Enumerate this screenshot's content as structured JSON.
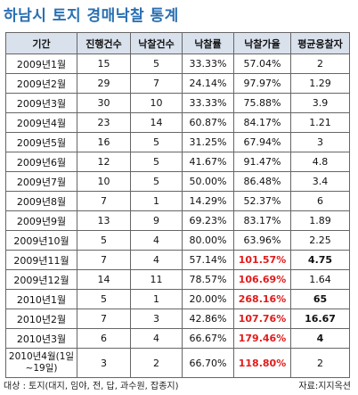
{
  "title": "하남시 토지 경매낙찰 통계",
  "table": {
    "headers": [
      "기간",
      "진행건수",
      "낙찰건수",
      "낙찰률",
      "낙찰가율",
      "평균응찰자"
    ],
    "rows": [
      {
        "period": "2009년1월",
        "progress": "15",
        "winning": "5",
        "rate": "33.33%",
        "price_rate": "57.04%",
        "avg_bidders": "2",
        "hi_price": false,
        "bold_bidders": false
      },
      {
        "period": "2009년2월",
        "progress": "29",
        "winning": "7",
        "rate": "24.14%",
        "price_rate": "97.97%",
        "avg_bidders": "1.29",
        "hi_price": false,
        "bold_bidders": false
      },
      {
        "period": "2009년3월",
        "progress": "30",
        "winning": "10",
        "rate": "33.33%",
        "price_rate": "75.88%",
        "avg_bidders": "3.9",
        "hi_price": false,
        "bold_bidders": false
      },
      {
        "period": "2009년4월",
        "progress": "23",
        "winning": "14",
        "rate": "60.87%",
        "price_rate": "84.17%",
        "avg_bidders": "1.21",
        "hi_price": false,
        "bold_bidders": false
      },
      {
        "period": "2009년5월",
        "progress": "16",
        "winning": "5",
        "rate": "31.25%",
        "price_rate": "67.94%",
        "avg_bidders": "3",
        "hi_price": false,
        "bold_bidders": false
      },
      {
        "period": "2009년6월",
        "progress": "12",
        "winning": "5",
        "rate": "41.67%",
        "price_rate": "91.47%",
        "avg_bidders": "4.8",
        "hi_price": false,
        "bold_bidders": false
      },
      {
        "period": "2009년7월",
        "progress": "10",
        "winning": "5",
        "rate": "50.00%",
        "price_rate": "86.48%",
        "avg_bidders": "3.4",
        "hi_price": false,
        "bold_bidders": false
      },
      {
        "period": "2009년8월",
        "progress": "7",
        "winning": "1",
        "rate": "14.29%",
        "price_rate": "52.37%",
        "avg_bidders": "6",
        "hi_price": false,
        "bold_bidders": false
      },
      {
        "period": "2009년9월",
        "progress": "13",
        "winning": "9",
        "rate": "69.23%",
        "price_rate": "83.17%",
        "avg_bidders": "1.89",
        "hi_price": false,
        "bold_bidders": false
      },
      {
        "period": "2009년10월",
        "progress": "5",
        "winning": "4",
        "rate": "80.00%",
        "price_rate": "63.96%",
        "avg_bidders": "2.25",
        "hi_price": false,
        "bold_bidders": false
      },
      {
        "period": "2009년11월",
        "progress": "7",
        "winning": "4",
        "rate": "57.14%",
        "price_rate": "101.57%",
        "avg_bidders": "4.75",
        "hi_price": true,
        "bold_bidders": true
      },
      {
        "period": "2009년12월",
        "progress": "14",
        "winning": "11",
        "rate": "78.57%",
        "price_rate": "106.69%",
        "avg_bidders": "1.64",
        "hi_price": true,
        "bold_bidders": false
      },
      {
        "period": "2010년1월",
        "progress": "5",
        "winning": "1",
        "rate": "20.00%",
        "price_rate": "268.16%",
        "avg_bidders": "65",
        "hi_price": true,
        "bold_bidders": true
      },
      {
        "period": "2010년2월",
        "progress": "7",
        "winning": "3",
        "rate": "42.86%",
        "price_rate": "107.76%",
        "avg_bidders": "16.67",
        "hi_price": true,
        "bold_bidders": true
      },
      {
        "period": "2010년3월",
        "progress": "6",
        "winning": "4",
        "rate": "66.67%",
        "price_rate": "179.46%",
        "avg_bidders": "4",
        "hi_price": true,
        "bold_bidders": true
      },
      {
        "period": "2010년4월(1일~19일)",
        "progress": "3",
        "winning": "2",
        "rate": "66.70%",
        "price_rate": "118.80%",
        "avg_bidders": "2",
        "hi_price": true,
        "bold_bidders": false
      }
    ]
  },
  "footnote": "대상 : 토지(대지, 임야, 전, 답, 과수원, 잡종지)",
  "source": "자료:지지옥션",
  "colors": {
    "title": "#2a6fb2",
    "header_bg": "#d8e1ec",
    "highlight": "#e11b1b"
  }
}
